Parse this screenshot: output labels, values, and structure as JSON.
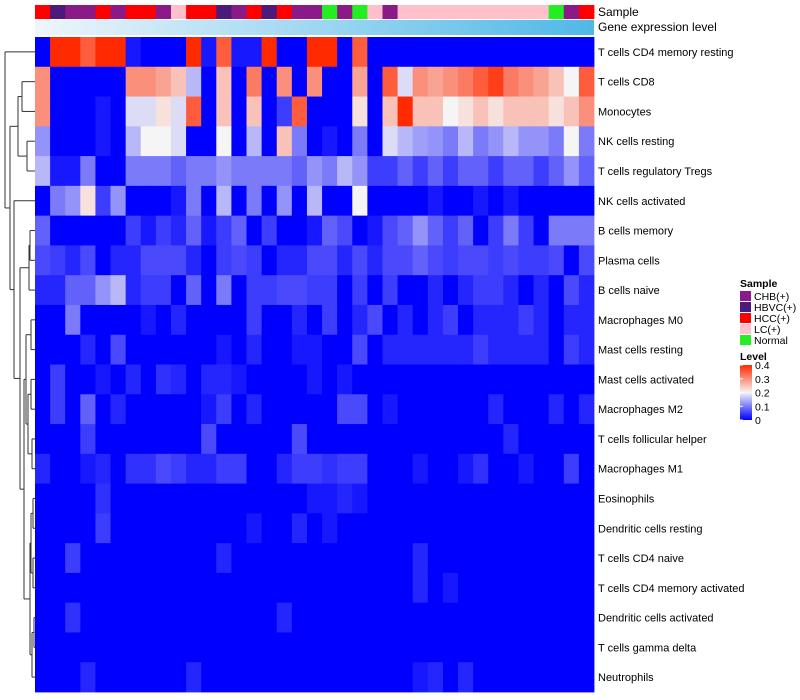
{
  "chart_data": {
    "type": "heatmap",
    "annotation_bars": [
      {
        "label": "Sample"
      },
      {
        "label": "Gene expression level"
      }
    ],
    "row_labels": [
      "T cells CD4 memory resting",
      "T cells CD8",
      "Monocytes",
      "NK cells resting",
      "T cells regulatory  Tregs",
      "NK cells activated",
      "B cells memory",
      "Plasma cells",
      "B cells naive",
      "Macrophages M0",
      "Mast cells resting",
      "Mast cells activated",
      "Macrophages M2",
      "T cells follicular helper",
      "Macrophages M1",
      "Eosinophils",
      "Dendritic cells resting",
      "T cells CD4 naive",
      "T cells CD4 memory activated",
      "Dendritic cells activated",
      "T cells gamma delta",
      "Neutrophils"
    ],
    "sample_groups": [
      "HCC",
      "HBVC",
      "CHB",
      "CHB",
      "HCC",
      "CHB",
      "HCC",
      "HCC",
      "CHB",
      "LC",
      "HCC",
      "HCC",
      "HBVC",
      "CHB",
      "HCC",
      "HBVC",
      "HCC",
      "CHB",
      "CHB",
      "Normal",
      "CHB",
      "Normal",
      "LC",
      "CHB",
      "LC",
      "LC",
      "LC",
      "LC",
      "LC",
      "LC",
      "LC",
      "LC",
      "LC",
      "LC",
      "Normal",
      "CHB",
      "HCC"
    ],
    "values": [
      [
        0.0,
        0.4,
        0.4,
        0.35,
        0.4,
        0.4,
        0.02,
        0.0,
        0.0,
        0.0,
        0.4,
        0.02,
        0.35,
        0.02,
        0.02,
        0.4,
        0.0,
        0.0,
        0.4,
        0.4,
        0.0,
        0.35,
        0.0,
        0.0,
        0.0,
        0.0,
        0.0,
        0.0,
        0.0,
        0.0,
        0.0,
        0.0,
        0.0,
        0.0,
        0.0,
        0.0,
        0.0
      ],
      [
        0.3,
        0.0,
        0.0,
        0.0,
        0.0,
        0.0,
        0.3,
        0.3,
        0.28,
        0.25,
        0.15,
        0.0,
        0.25,
        0.0,
        0.32,
        0.0,
        0.3,
        0.0,
        0.3,
        0.0,
        0.0,
        0.28,
        0.0,
        0.35,
        0.18,
        0.3,
        0.28,
        0.3,
        0.32,
        0.35,
        0.38,
        0.32,
        0.3,
        0.28,
        0.25,
        0.2,
        0.35
      ],
      [
        0.3,
        0.0,
        0.0,
        0.0,
        0.02,
        0.0,
        0.18,
        0.18,
        0.22,
        0.18,
        0.35,
        0.0,
        0.25,
        0.0,
        0.25,
        0.0,
        0.05,
        0.35,
        0.0,
        0.0,
        0.0,
        0.22,
        0.0,
        0.25,
        0.4,
        0.25,
        0.25,
        0.2,
        0.22,
        0.25,
        0.22,
        0.25,
        0.25,
        0.25,
        0.22,
        0.25,
        0.3
      ],
      [
        0.12,
        0.0,
        0.0,
        0.0,
        0.02,
        0.0,
        0.15,
        0.2,
        0.2,
        0.18,
        0.0,
        0.0,
        0.2,
        0.0,
        0.15,
        0.0,
        0.25,
        0.1,
        0.0,
        0.02,
        0.0,
        0.1,
        0.0,
        0.18,
        0.15,
        0.13,
        0.12,
        0.1,
        0.15,
        0.1,
        0.12,
        0.15,
        0.12,
        0.12,
        0.1,
        0.2,
        0.1
      ],
      [
        0.15,
        0.02,
        0.02,
        0.1,
        0.0,
        0.0,
        0.1,
        0.1,
        0.1,
        0.08,
        0.1,
        0.1,
        0.12,
        0.1,
        0.1,
        0.1,
        0.1,
        0.08,
        0.12,
        0.1,
        0.15,
        0.12,
        0.05,
        0.05,
        0.08,
        0.05,
        0.08,
        0.05,
        0.08,
        0.08,
        0.05,
        0.08,
        0.08,
        0.05,
        0.08,
        0.12,
        0.08
      ],
      [
        0.0,
        0.1,
        0.12,
        0.22,
        0.05,
        0.12,
        0.0,
        0.0,
        0.0,
        0.02,
        0.1,
        0.0,
        0.15,
        0.0,
        0.1,
        0.0,
        0.12,
        0.0,
        0.15,
        0.0,
        0.0,
        0.2,
        0.0,
        0.0,
        0.0,
        0.0,
        0.02,
        0.0,
        0.0,
        0.02,
        0.0,
        0.02,
        0.0,
        0.0,
        0.0,
        0.0,
        0.0
      ],
      [
        0.08,
        0.0,
        0.0,
        0.0,
        0.0,
        0.0,
        0.05,
        0.02,
        0.05,
        0.03,
        0.08,
        0.02,
        0.05,
        0.08,
        0.0,
        0.05,
        0.0,
        0.0,
        0.02,
        0.08,
        0.06,
        0.0,
        0.02,
        0.06,
        0.08,
        0.12,
        0.08,
        0.05,
        0.08,
        0.0,
        0.05,
        0.1,
        0.05,
        0.0,
        0.1,
        0.1,
        0.1
      ],
      [
        0.06,
        0.05,
        0.03,
        0.06,
        0.0,
        0.03,
        0.03,
        0.06,
        0.06,
        0.06,
        0.03,
        0.0,
        0.05,
        0.06,
        0.05,
        0.0,
        0.03,
        0.03,
        0.06,
        0.06,
        0.03,
        0.06,
        0.03,
        0.06,
        0.06,
        0.08,
        0.06,
        0.05,
        0.06,
        0.06,
        0.05,
        0.06,
        0.05,
        0.05,
        0.06,
        0.0,
        0.06
      ],
      [
        0.03,
        0.03,
        0.08,
        0.08,
        0.12,
        0.15,
        0.03,
        0.05,
        0.05,
        0.0,
        0.08,
        0.0,
        0.1,
        0.0,
        0.05,
        0.05,
        0.06,
        0.06,
        0.05,
        0.05,
        0.0,
        0.05,
        0.0,
        0.05,
        0.0,
        0.0,
        0.03,
        0.0,
        0.03,
        0.05,
        0.05,
        0.03,
        0.0,
        0.03,
        0.0,
        0.06,
        0.03
      ],
      [
        0.0,
        0.0,
        0.1,
        0.0,
        0.0,
        0.0,
        0.0,
        0.02,
        0.0,
        0.03,
        0.0,
        0.0,
        0.0,
        0.0,
        0.05,
        0.0,
        0.0,
        0.03,
        0.0,
        0.05,
        0.0,
        0.03,
        0.06,
        0.0,
        0.03,
        0.0,
        0.03,
        0.05,
        0.0,
        0.03,
        0.03,
        0.03,
        0.05,
        0.03,
        0.0,
        0.03,
        0.03
      ],
      [
        0.0,
        0.0,
        0.0,
        0.03,
        0.0,
        0.06,
        0.0,
        0.0,
        0.0,
        0.0,
        0.0,
        0.0,
        0.02,
        0.0,
        0.03,
        0.0,
        0.0,
        0.02,
        0.02,
        0.0,
        0.0,
        0.06,
        0.0,
        0.03,
        0.03,
        0.03,
        0.03,
        0.03,
        0.03,
        0.05,
        0.03,
        0.03,
        0.03,
        0.03,
        0.0,
        0.05,
        0.03
      ],
      [
        0.0,
        0.05,
        0.0,
        0.0,
        0.02,
        0.0,
        0.03,
        0.0,
        0.04,
        0.03,
        0.0,
        0.03,
        0.03,
        0.02,
        0.0,
        0.0,
        0.0,
        0.0,
        0.02,
        0.0,
        0.02,
        0.0,
        0.0,
        0.0,
        0.0,
        0.0,
        0.0,
        0.0,
        0.0,
        0.0,
        0.0,
        0.0,
        0.0,
        0.0,
        0.0,
        0.0,
        0.0
      ],
      [
        0.0,
        0.05,
        0.0,
        0.08,
        0.0,
        0.03,
        0.0,
        0.0,
        0.0,
        0.0,
        0.0,
        0.02,
        0.05,
        0.0,
        0.03,
        0.0,
        0.0,
        0.0,
        0.0,
        0.0,
        0.06,
        0.06,
        0.0,
        0.02,
        0.0,
        0.0,
        0.0,
        0.0,
        0.0,
        0.0,
        0.03,
        0.0,
        0.0,
        0.0,
        0.03,
        0.0,
        0.03
      ],
      [
        0.0,
        0.0,
        0.0,
        0.05,
        0.0,
        0.0,
        0.0,
        0.0,
        0.0,
        0.0,
        0.0,
        0.06,
        0.0,
        0.0,
        0.0,
        0.0,
        0.0,
        0.06,
        0.0,
        0.0,
        0.0,
        0.0,
        0.0,
        0.0,
        0.0,
        0.0,
        0.0,
        0.0,
        0.0,
        0.0,
        0.0,
        0.03,
        0.0,
        0.0,
        0.0,
        0.0,
        0.0
      ],
      [
        0.03,
        0.0,
        0.0,
        0.02,
        0.03,
        0.0,
        0.04,
        0.04,
        0.06,
        0.05,
        0.03,
        0.03,
        0.05,
        0.05,
        0.0,
        0.0,
        0.03,
        0.05,
        0.05,
        0.04,
        0.05,
        0.05,
        0.0,
        0.0,
        0.0,
        0.02,
        0.0,
        0.0,
        0.02,
        0.04,
        0.0,
        0.0,
        0.02,
        0.0,
        0.0,
        0.05,
        0.0
      ],
      [
        0.0,
        0.0,
        0.0,
        0.0,
        0.04,
        0.0,
        0.0,
        0.0,
        0.0,
        0.0,
        0.0,
        0.0,
        0.0,
        0.0,
        0.0,
        0.0,
        0.0,
        0.0,
        0.02,
        0.02,
        0.03,
        0.02,
        0.0,
        0.0,
        0.0,
        0.0,
        0.0,
        0.0,
        0.0,
        0.0,
        0.0,
        0.0,
        0.0,
        0.0,
        0.0,
        0.0,
        0.0
      ],
      [
        0.0,
        0.0,
        0.0,
        0.0,
        0.05,
        0.0,
        0.0,
        0.0,
        0.0,
        0.0,
        0.0,
        0.0,
        0.0,
        0.0,
        0.02,
        0.0,
        0.0,
        0.03,
        0.0,
        0.02,
        0.0,
        0.0,
        0.0,
        0.0,
        0.0,
        0.0,
        0.0,
        0.0,
        0.0,
        0.0,
        0.0,
        0.0,
        0.0,
        0.0,
        0.0,
        0.0,
        0.0
      ],
      [
        0.0,
        0.0,
        0.05,
        0.0,
        0.0,
        0.0,
        0.0,
        0.0,
        0.0,
        0.0,
        0.0,
        0.0,
        0.03,
        0.0,
        0.0,
        0.0,
        0.0,
        0.0,
        0.0,
        0.0,
        0.0,
        0.0,
        0.0,
        0.0,
        0.0,
        0.03,
        0.0,
        0.0,
        0.0,
        0.0,
        0.0,
        0.0,
        0.0,
        0.0,
        0.0,
        0.0,
        0.0
      ],
      [
        0.0,
        0.0,
        0.0,
        0.0,
        0.0,
        0.0,
        0.0,
        0.0,
        0.0,
        0.0,
        0.0,
        0.0,
        0.0,
        0.0,
        0.0,
        0.0,
        0.0,
        0.0,
        0.0,
        0.0,
        0.0,
        0.0,
        0.0,
        0.0,
        0.0,
        0.03,
        0.0,
        0.02,
        0.0,
        0.0,
        0.0,
        0.0,
        0.0,
        0.0,
        0.0,
        0.0,
        0.0
      ],
      [
        0.0,
        0.0,
        0.04,
        0.0,
        0.0,
        0.0,
        0.0,
        0.0,
        0.0,
        0.0,
        0.0,
        0.0,
        0.0,
        0.0,
        0.0,
        0.0,
        0.03,
        0.0,
        0.0,
        0.0,
        0.0,
        0.0,
        0.0,
        0.0,
        0.0,
        0.0,
        0.0,
        0.0,
        0.0,
        0.0,
        0.0,
        0.0,
        0.0,
        0.0,
        0.0,
        0.0,
        0.0
      ],
      [
        0.0,
        0.0,
        0.0,
        0.0,
        0.0,
        0.0,
        0.0,
        0.0,
        0.0,
        0.0,
        0.0,
        0.0,
        0.0,
        0.0,
        0.0,
        0.0,
        0.0,
        0.0,
        0.0,
        0.0,
        0.0,
        0.0,
        0.0,
        0.0,
        0.0,
        0.0,
        0.0,
        0.0,
        0.0,
        0.0,
        0.0,
        0.0,
        0.0,
        0.0,
        0.0,
        0.0,
        0.0
      ],
      [
        0.0,
        0.0,
        0.0,
        0.03,
        0.0,
        0.0,
        0.0,
        0.0,
        0.0,
        0.0,
        0.03,
        0.0,
        0.0,
        0.0,
        0.0,
        0.0,
        0.0,
        0.0,
        0.0,
        0.0,
        0.0,
        0.0,
        0.0,
        0.0,
        0.0,
        0.02,
        0.03,
        0.0,
        0.03,
        0.0,
        0.0,
        0.0,
        0.0,
        0.0,
        0.0,
        0.0,
        0.0
      ]
    ],
    "sample_legend": {
      "title": "Sample",
      "items": [
        {
          "key": "CHB",
          "label": "CHB(+)",
          "color": "#8b1a89"
        },
        {
          "key": "HBVC",
          "label": "HBVC(+)",
          "color": "#4b1a7a"
        },
        {
          "key": "HCC",
          "label": "HCC(+)",
          "color": "#ff0000"
        },
        {
          "key": "LC",
          "label": "LC(+)",
          "color": "#ffc0cb"
        },
        {
          "key": "Normal",
          "label": "Normal",
          "color": "#22ee22"
        }
      ]
    },
    "level_legend": {
      "title": "Level",
      "ticks": [
        "0.4",
        "0.3",
        "0.2",
        "0.1",
        "0"
      ],
      "range": [
        0,
        0.4
      ]
    },
    "color_scale": {
      "low": "#0000ff",
      "mid": "#f5f5f5",
      "high": "#ff2a00",
      "mid_value": 0.2
    },
    "gene_expression_gradient": [
      "#eef6fb",
      "#4fb8e8"
    ]
  }
}
